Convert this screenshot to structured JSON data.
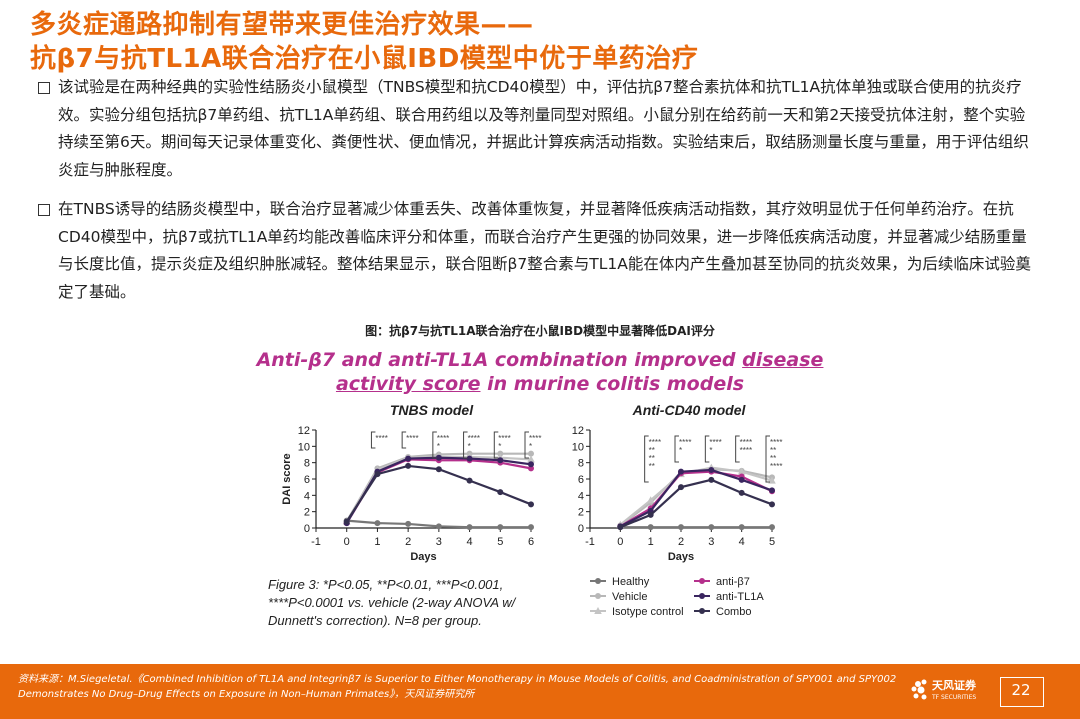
{
  "header": {
    "title_line1": "多炎症通路抑制有望带来更佳治疗效果——",
    "title_line2": "抗β7与抗TL1A联合治疗在小鼠IBD模型中优于单药治疗"
  },
  "bullets": [
    "该试验是在两种经典的实验性结肠炎小鼠模型（TNBS模型和抗CD40模型）中，评估抗β7整合素抗体和抗TL1A抗体单独或联合使用的抗炎疗效。实验分组包括抗β7单药组、抗TL1A单药组、联合用药组以及等剂量同型对照组。小鼠分别在给药前一天和第2天接受抗体注射，整个实验持续至第6天。期间每天记录体重变化、粪便性状、便血情况，并据此计算疾病活动指数。实验结束后，取结肠测量长度与重量，用于评估组织炎症与肿胀程度。",
    "在TNBS诱导的结肠炎模型中，联合治疗显著减少体重丢失、改善体重恢复，并显著降低疾病活动指数，其疗效明显优于任何单药治疗。在抗CD40模型中，抗β7或抗TL1A单药均能改善临床评分和体重，而联合治疗产生更强的协同效果，进一步降低疾病活动度，并显著减少结肠重量与长度比值，提示炎症及组织肿胀减轻。整体结果显示，联合阻断β7整合素与TL1A能在体内产生叠加甚至协同的抗炎效果，为后续临床试验奠定了基础。"
  ],
  "figure": {
    "caption": "图：抗β7与抗TL1A联合治疗在小鼠IBD模型中显著降低DAI评分",
    "title_line1_a": "Anti-β7 and anti-TL1A combination improved ",
    "title_line1_b": "disease",
    "title_line2_a": "activity score",
    "title_line2_b": " in murine colitis models",
    "note": [
      "Figure 3: *P<0.05, **P<0.01, ***P<0.001,",
      "****P<0.0001 vs. vehicle (2-way ANOVA w/",
      "Dunnett's correction). N=8 per group."
    ],
    "legend": [
      {
        "name": "Healthy",
        "color": "#777777",
        "marker": "circle"
      },
      {
        "name": "anti-β7",
        "color": "#b5308c",
        "marker": "circle"
      },
      {
        "name": "Vehicle",
        "color": "#b8b8b8",
        "marker": "circle"
      },
      {
        "name": "anti-TL1A",
        "color": "#3a2560",
        "marker": "circle"
      },
      {
        "name": "Isotype control",
        "color": "#c4c4c4",
        "marker": "triangle"
      },
      {
        "name": "Combo",
        "color": "#35304f",
        "marker": "circle"
      }
    ]
  },
  "chart_data": [
    {
      "type": "line",
      "title": "TNBS model",
      "xlabel": "Days",
      "ylabel": "DAI score",
      "x": [
        -1,
        0,
        1,
        2,
        3,
        4,
        5,
        6
      ],
      "xticks": [
        "-1",
        "0",
        "1",
        "2",
        "3",
        "4",
        "5",
        "6"
      ],
      "yticks": [
        "0",
        "2",
        "4",
        "6",
        "8",
        "10",
        "12"
      ],
      "ylim": [
        0,
        12
      ],
      "series": [
        {
          "name": "Healthy",
          "color": "#777777",
          "values": [
            null,
            0.9,
            0.6,
            0.5,
            0.2,
            0.1,
            0.1,
            0.1
          ]
        },
        {
          "name": "Vehicle",
          "color": "#b8b8b8",
          "values": [
            null,
            0.8,
            7.3,
            8.7,
            9.0,
            9.1,
            9.1,
            9.1
          ]
        },
        {
          "name": "Isotype control",
          "color": "#c4c4c4",
          "values": [
            null,
            0.8,
            7.1,
            8.6,
            8.7,
            8.7,
            8.6,
            8.4
          ]
        },
        {
          "name": "anti-β7",
          "color": "#b5308c",
          "values": [
            null,
            0.6,
            6.8,
            8.4,
            8.3,
            8.3,
            8.0,
            7.3
          ]
        },
        {
          "name": "anti-TL1A",
          "color": "#3a2560",
          "values": [
            null,
            0.6,
            6.9,
            8.5,
            8.6,
            8.5,
            8.3,
            7.8
          ]
        },
        {
          "name": "Combo",
          "color": "#35304f",
          "values": [
            null,
            0.8,
            6.6,
            7.6,
            7.2,
            5.8,
            4.4,
            2.9
          ]
        }
      ],
      "significance": [
        {
          "x": 1,
          "lines": [
            "****"
          ]
        },
        {
          "x": 2,
          "lines": [
            "****"
          ]
        },
        {
          "x": 3,
          "lines": [
            "****",
            "*"
          ]
        },
        {
          "x": 4,
          "lines": [
            "****",
            "*"
          ]
        },
        {
          "x": 5,
          "lines": [
            "****",
            "*"
          ]
        },
        {
          "x": 6,
          "lines": [
            "****",
            "*"
          ]
        }
      ]
    },
    {
      "type": "line",
      "title": "Anti-CD40 model",
      "xlabel": "Days",
      "ylabel": "",
      "x": [
        -1,
        0,
        1,
        2,
        3,
        4,
        5
      ],
      "xticks": [
        "-1",
        "0",
        "1",
        "2",
        "3",
        "4",
        "5"
      ],
      "yticks": [
        "0",
        "2",
        "4",
        "6",
        "8",
        "10",
        "12"
      ],
      "ylim": [
        0,
        12
      ],
      "series": [
        {
          "name": "Healthy",
          "color": "#777777",
          "values": [
            null,
            0.1,
            0.1,
            0.1,
            0.1,
            0.1,
            0.1
          ]
        },
        {
          "name": "Vehicle",
          "color": "#b8b8b8",
          "values": [
            null,
            0.3,
            3.1,
            6.8,
            7.2,
            7.0,
            6.2
          ]
        },
        {
          "name": "Isotype control",
          "color": "#c4c4c4",
          "values": [
            null,
            0.4,
            3.4,
            6.6,
            7.4,
            6.9,
            5.8
          ]
        },
        {
          "name": "anti-β7",
          "color": "#b5308c",
          "values": [
            null,
            0.2,
            2.4,
            6.7,
            6.9,
            6.3,
            4.5
          ]
        },
        {
          "name": "anti-TL1A",
          "color": "#3a2560",
          "values": [
            null,
            0.2,
            2.1,
            6.9,
            7.1,
            5.9,
            4.6
          ]
        },
        {
          "name": "Combo",
          "color": "#35304f",
          "values": [
            null,
            0.1,
            1.6,
            5.0,
            5.9,
            4.3,
            2.9
          ]
        }
      ],
      "significance": [
        {
          "x": 1,
          "lines": [
            "****",
            "**",
            "**",
            "**"
          ]
        },
        {
          "x": 2,
          "lines": [
            "****",
            "*"
          ]
        },
        {
          "x": 3,
          "lines": [
            "****",
            "*"
          ]
        },
        {
          "x": 4,
          "lines": [
            "****",
            "****"
          ]
        },
        {
          "x": 5,
          "lines": [
            "****",
            "**",
            "**",
            "****"
          ]
        }
      ]
    }
  ],
  "footer": {
    "source": "资料来源：M.Siegeletal.《Combined Inhibition of TL1A and Integrinβ7 is Superior to Either Monotherapy in Mouse Models of Colitis, and Coadministration of SPY001 and SPY002 Demonstrates No Drug–Drug Effects on Exposure in Non–Human Primates》，天风证券研究所",
    "brand": "天风证券",
    "brand_sub": "TF SECURITIES",
    "page": "22"
  }
}
